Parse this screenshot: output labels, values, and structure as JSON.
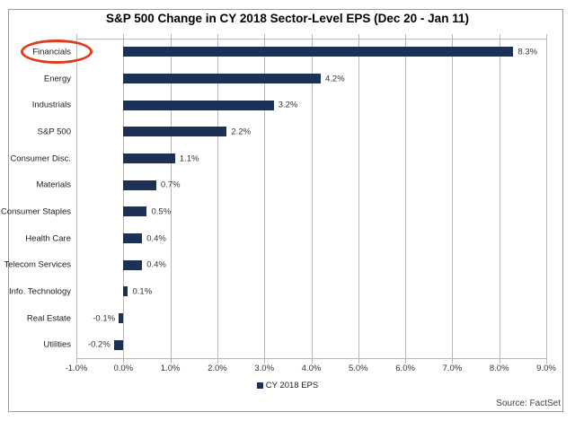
{
  "title": "S&P 500 Change in CY 2018 Sector-Level EPS (Dec 20 - Jan 11)",
  "source": "Source: FactSet",
  "legend": {
    "label": "CY 2018 EPS",
    "marker_color": "#1d3157"
  },
  "annotation": {
    "shape": "ellipse",
    "target_category": "Financials",
    "color": "#e23b1c"
  },
  "colors": {
    "bar": "#1d3157",
    "gridline": "#b8b8b8",
    "frame_border": "#9c9c9c"
  },
  "chart_data": {
    "type": "bar",
    "orientation": "horizontal",
    "title": "S&P 500 Change in CY 2018 Sector-Level EPS (Dec 20 - Jan 11)",
    "categories": [
      "Financials",
      "Energy",
      "Industrials",
      "S&P 500",
      "Consumer Disc.",
      "Materials",
      "Consumer Staples",
      "Health Care",
      "Telecom Services",
      "Info. Technology",
      "Real Estate",
      "Utilities"
    ],
    "values": [
      8.3,
      4.2,
      3.2,
      2.2,
      1.1,
      0.7,
      0.5,
      0.4,
      0.4,
      0.1,
      -0.1,
      -0.2
    ],
    "value_labels": [
      "8.3%",
      "4.2%",
      "3.2%",
      "2.2%",
      "1.1%",
      "0.7%",
      "0.5%",
      "0.4%",
      "0.4%",
      "0.1%",
      "-0.1%",
      "-0.2%"
    ],
    "series_name": "CY 2018 EPS",
    "x_tick_labels": [
      "-1.0%",
      "0.0%",
      "1.0%",
      "2.0%",
      "3.0%",
      "4.0%",
      "5.0%",
      "6.0%",
      "7.0%",
      "8.0%",
      "9.0%"
    ],
    "xlim": [
      -1,
      9
    ],
    "grid": "vertical",
    "legend_position": "bottom",
    "bar_color": "#1d3157"
  }
}
